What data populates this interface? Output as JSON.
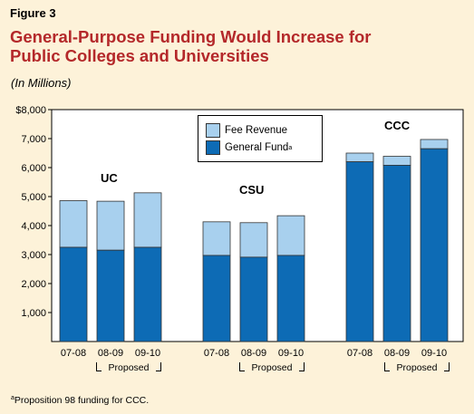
{
  "figure_label": "Figure 3",
  "title_line1": "General-Purpose Funding Would Increase for",
  "title_line2": "Public Colleges and Universities",
  "units": "(In Millions)",
  "footnote_marker": "a",
  "footnote_text": "Proposition 98 funding for CCC.",
  "colors": {
    "background": "#fdf2d9",
    "title": "#b4282a",
    "general_fund": "#0d6bb5",
    "fee_revenue": "#a8d0ee"
  },
  "legend": {
    "fee_revenue": "Fee Revenue",
    "general_fund": "General Fund",
    "general_fund_marker": "a"
  },
  "proposed_label": "Proposed",
  "chart_data": {
    "type": "bar",
    "stacked": true,
    "groups": [
      "UC",
      "CSU",
      "CCC"
    ],
    "categories": [
      "07-08",
      "08-09",
      "09-10"
    ],
    "series": [
      {
        "name": "General Fund",
        "values": {
          "UC": [
            3250,
            3150,
            3250
          ],
          "CSU": [
            2970,
            2910,
            2970
          ],
          "CCC": [
            6200,
            6080,
            6650
          ]
        }
      },
      {
        "name": "Fee Revenue",
        "values": {
          "UC": [
            1610,
            1690,
            1880
          ],
          "CSU": [
            1160,
            1190,
            1370
          ],
          "CCC": [
            300,
            310,
            320
          ]
        }
      }
    ],
    "ylim": [
      0,
      8000
    ],
    "yticks": [
      1000,
      2000,
      3000,
      4000,
      5000,
      6000,
      7000,
      8000
    ],
    "ytick_labels": [
      "1,000",
      "2,000",
      "3,000",
      "4,000",
      "5,000",
      "6,000",
      "7,000",
      "$8,000"
    ],
    "legend_position": "top-center",
    "grid": false
  }
}
